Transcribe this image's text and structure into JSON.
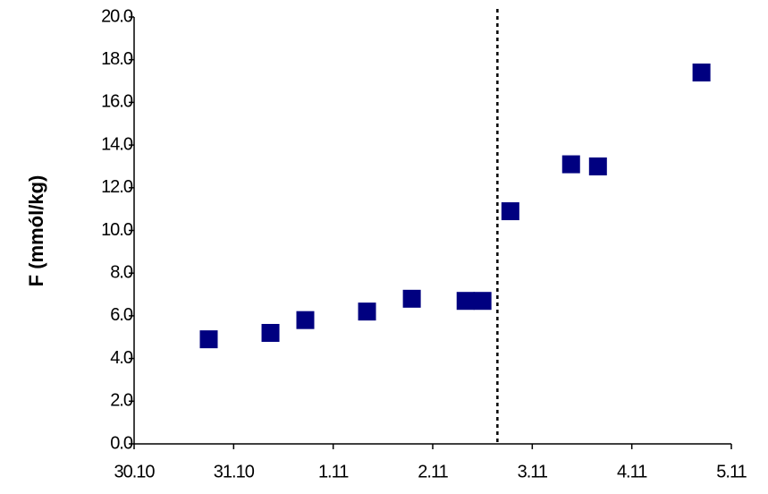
{
  "chart_data": {
    "type": "scatter",
    "y_label": "F (mmól/kg)",
    "x": [
      0.75,
      1.37,
      1.72,
      2.34,
      2.79,
      3.33,
      3.5,
      3.78,
      4.39,
      4.66,
      5.7
    ],
    "series": [
      {
        "color": "#000080",
        "values": [
          4.9,
          5.2,
          5.8,
          6.2,
          6.8,
          6.7,
          6.7,
          10.9,
          13.1,
          13.0,
          17.4
        ]
      }
    ],
    "xlim": [
      0,
      6
    ],
    "xticks": [
      {
        "value": 0,
        "label": "30.10"
      },
      {
        "value": 1,
        "label": "31.10"
      },
      {
        "value": 2,
        "label": "1.11"
      },
      {
        "value": 3,
        "label": "2.11"
      },
      {
        "value": 4,
        "label": "3.11"
      },
      {
        "value": 5,
        "label": "4.11"
      },
      {
        "value": 6,
        "label": "5.11"
      }
    ],
    "ylim": [
      0,
      20
    ],
    "yticks": [
      {
        "value": 0,
        "label": "0.0"
      },
      {
        "value": 2,
        "label": "2.0"
      },
      {
        "value": 4,
        "label": "4.0"
      },
      {
        "value": 6,
        "label": "6.0"
      },
      {
        "value": 8,
        "label": "8.0"
      },
      {
        "value": 10,
        "label": "10.0"
      },
      {
        "value": 12,
        "label": "12.0"
      },
      {
        "value": 14,
        "label": "14.0"
      },
      {
        "value": 16,
        "label": "16.0"
      },
      {
        "value": 18,
        "label": "18.0"
      },
      {
        "value": 20,
        "label": "20.0"
      }
    ],
    "vline": 3.65,
    "grid": false
  }
}
